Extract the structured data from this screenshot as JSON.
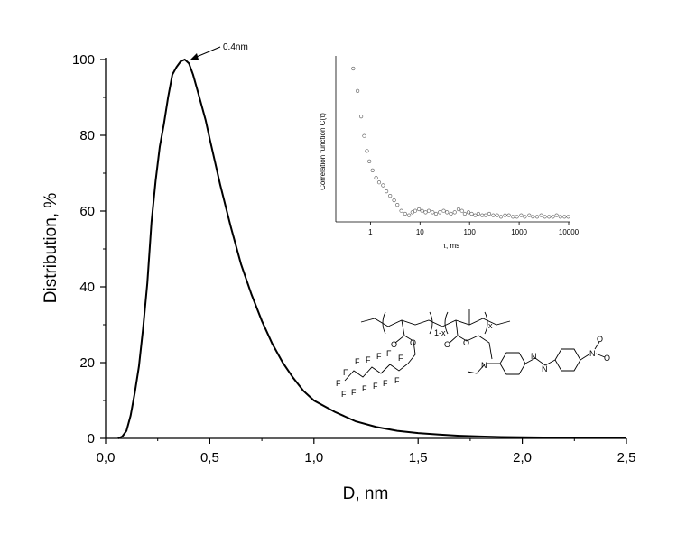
{
  "chart_data": [
    {
      "type": "line",
      "xlabel": "D, nm",
      "ylabel": "Distribution, %",
      "xlim": [
        0.0,
        2.5
      ],
      "ylim": [
        0,
        100
      ],
      "xticks": [
        "0,0",
        "0,5",
        "1,0",
        "1,5",
        "2,0",
        "2,5"
      ],
      "yticks": [
        "0",
        "20",
        "40",
        "60",
        "80",
        "100"
      ],
      "grid": false,
      "annotation": {
        "text": "0.4nm",
        "x": 0.39,
        "y": 100
      },
      "series": [
        {
          "x": [
            0.06,
            0.08,
            0.1,
            0.12,
            0.14,
            0.16,
            0.18,
            0.2,
            0.22,
            0.24,
            0.26,
            0.28,
            0.3,
            0.32,
            0.34,
            0.36,
            0.38,
            0.4,
            0.42,
            0.44,
            0.46,
            0.48,
            0.5,
            0.55,
            0.6,
            0.65,
            0.7,
            0.75,
            0.8,
            0.85,
            0.9,
            0.95,
            1.0,
            1.1,
            1.2,
            1.3,
            1.4,
            1.5,
            1.6,
            1.7,
            1.8,
            1.9,
            2.0,
            2.2,
            2.5
          ],
          "y": [
            0,
            0.5,
            2,
            6,
            12,
            19,
            29,
            41,
            57,
            68,
            77,
            83,
            90,
            96,
            98,
            99.5,
            100,
            99,
            96,
            92,
            88,
            84,
            79,
            67,
            56,
            46,
            38,
            31,
            25,
            20,
            16,
            12.5,
            10,
            7,
            4.5,
            3,
            2,
            1.4,
            1,
            0.7,
            0.5,
            0.35,
            0.3,
            0.2,
            0.2
          ]
        }
      ]
    },
    {
      "type": "scatter",
      "ylabel": "Correlation function C(τ)",
      "xlabel": "τ, ms",
      "xscale": "log",
      "xlim": [
        0.2,
        10000
      ],
      "xticks": [
        "1",
        "10",
        "100",
        "1000",
        "10000"
      ],
      "series": [
        {
          "x": [
            0.45,
            0.55,
            0.65,
            0.75,
            0.85,
            0.95,
            1.1,
            1.3,
            1.5,
            1.8,
            2.1,
            2.5,
            3,
            3.5,
            4.2,
            5,
            6,
            7,
            8,
            9.5,
            11,
            13,
            15,
            18,
            21,
            25,
            30,
            35,
            42,
            50,
            60,
            70,
            80,
            95,
            110,
            130,
            150,
            180,
            210,
            250,
            300,
            360,
            430,
            520,
            620,
            750,
            900,
            1100,
            1300,
            1600,
            1900,
            2300,
            2800,
            3300,
            4000,
            4800,
            5700,
            6800,
            8200,
            9800
          ],
          "y": [
            1.0,
            0.85,
            0.68,
            0.55,
            0.45,
            0.38,
            0.32,
            0.27,
            0.24,
            0.22,
            0.18,
            0.15,
            0.12,
            0.09,
            0.05,
            0.03,
            0.02,
            0.04,
            0.05,
            0.06,
            0.05,
            0.04,
            0.05,
            0.04,
            0.03,
            0.04,
            0.05,
            0.04,
            0.03,
            0.04,
            0.06,
            0.05,
            0.03,
            0.04,
            0.03,
            0.02,
            0.03,
            0.02,
            0.02,
            0.03,
            0.02,
            0.02,
            0.01,
            0.02,
            0.02,
            0.01,
            0.01,
            0.02,
            0.01,
            0.02,
            0.01,
            0.01,
            0.02,
            0.01,
            0.01,
            0.01,
            0.02,
            0.01,
            0.01,
            0.01
          ]
        }
      ]
    }
  ],
  "structure": {
    "sub_1x": "1-x",
    "sub_x": "x",
    "atoms": {
      "O": "O",
      "N": "N",
      "F": "F",
      "NO2_O": "O"
    }
  }
}
